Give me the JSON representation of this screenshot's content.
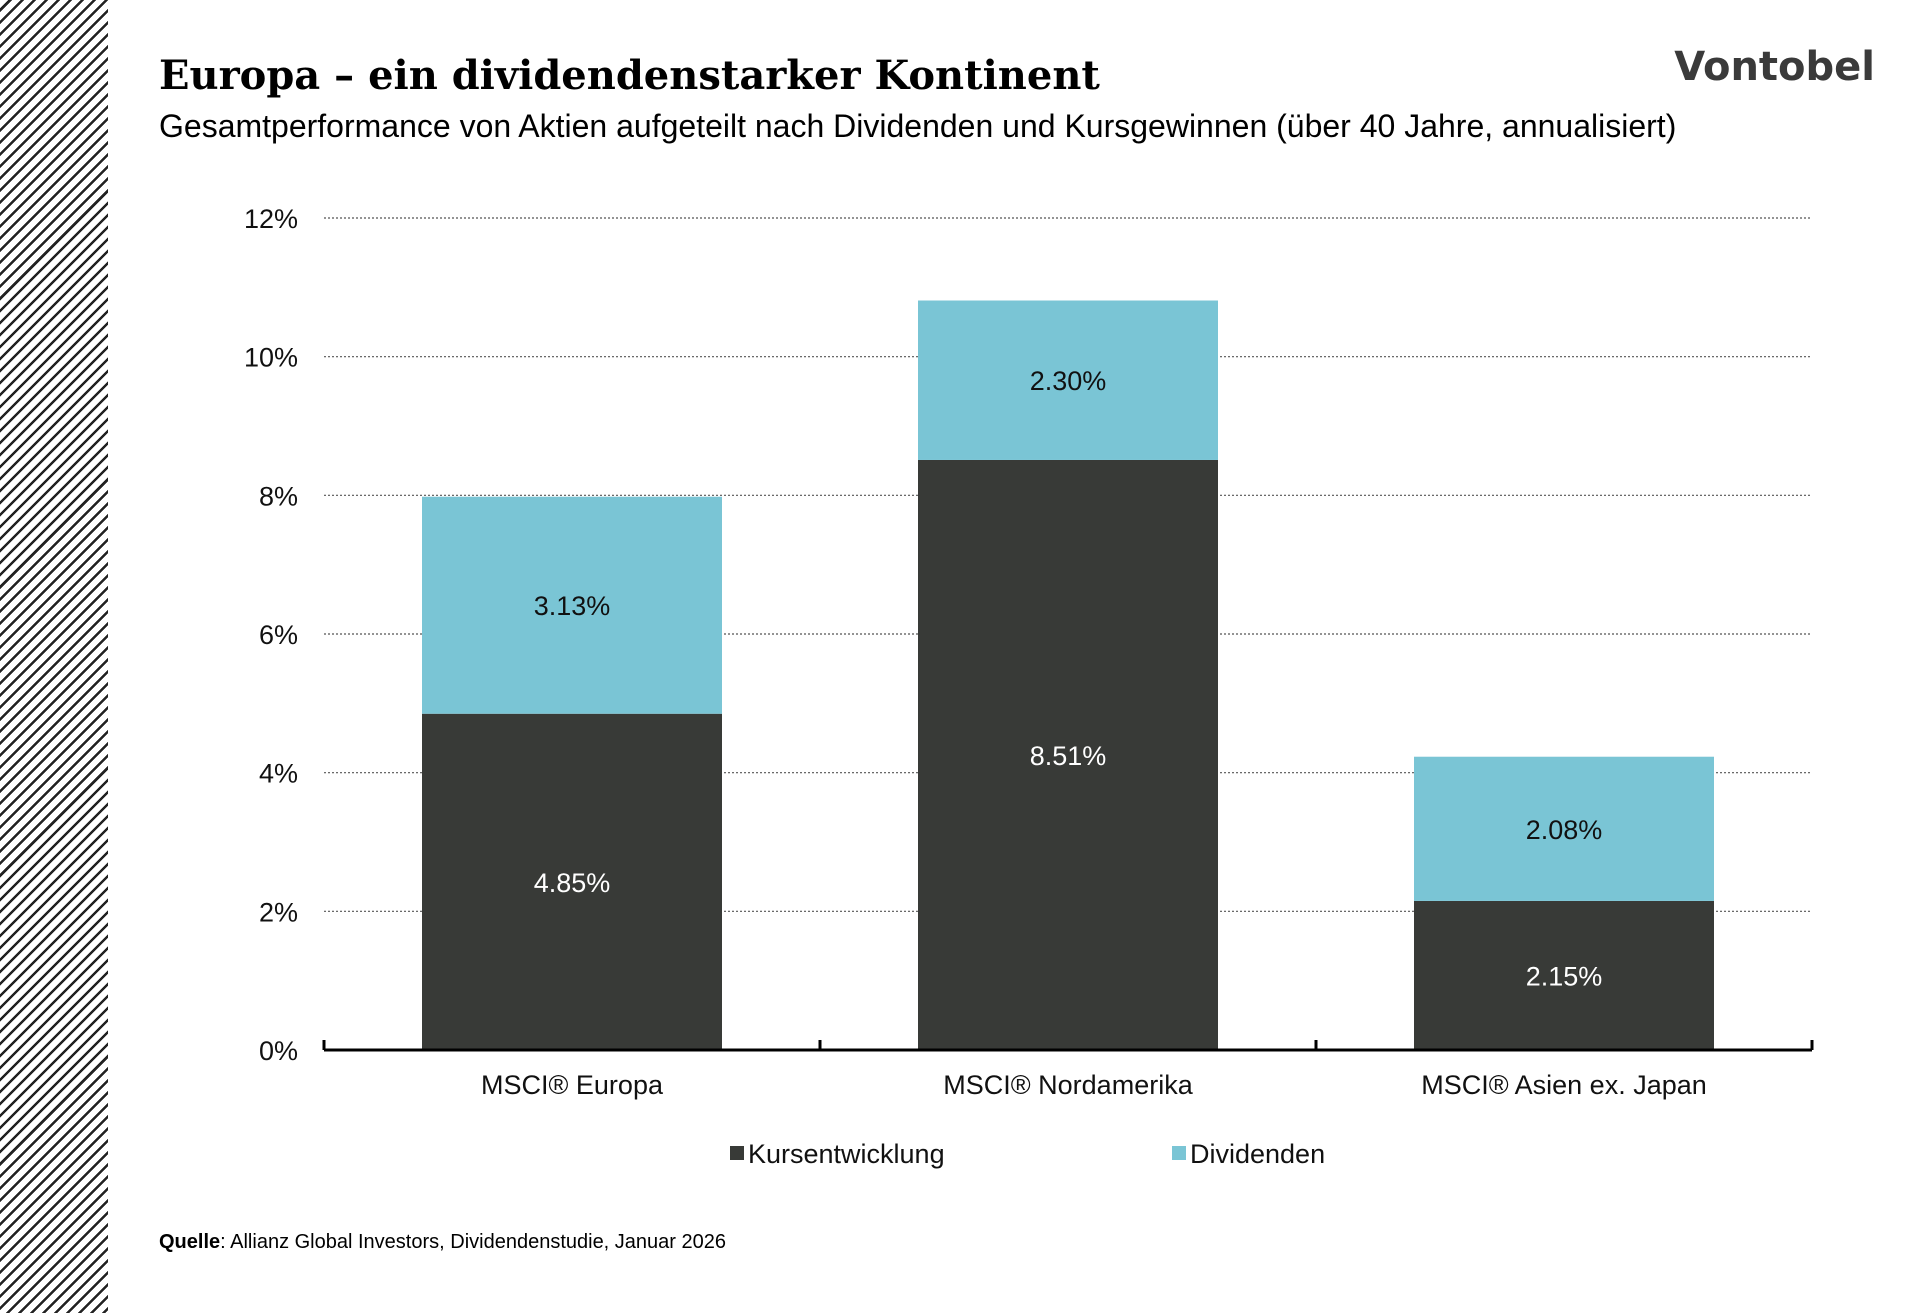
{
  "header": {
    "title": "Europa – ein dividendenstarker Kontinent",
    "subtitle": "Gesamtperformance von Aktien aufgeteilt nach Dividenden und Kursgewinnen (über 40 Jahre, annualisiert)",
    "logo_text": "Vontobel"
  },
  "footer": {
    "source_label": "Quelle",
    "source_text": ": Allianz Global Investors, Dividendenstudie, Januar 2026"
  },
  "chart_data": {
    "type": "bar",
    "stacked": true,
    "categories": [
      "MSCI® Europa",
      "MSCI® Nordamerika",
      "MSCI® Asien ex. Japan"
    ],
    "series": [
      {
        "name": "Kursentwicklung",
        "values": [
          4.85,
          8.51,
          2.15
        ],
        "labels": [
          "4.85%",
          "8.51%",
          "2.15%"
        ],
        "color": "#383a37",
        "label_color": "#ffffff"
      },
      {
        "name": "Dividenden",
        "values": [
          3.13,
          2.3,
          2.08
        ],
        "labels": [
          "3.13%",
          "2.30%",
          "2.08%"
        ],
        "color": "#7ac5d5",
        "label_color": "#111111"
      }
    ],
    "ylim": [
      0,
      12
    ],
    "yticks": [
      0,
      2,
      4,
      6,
      8,
      10,
      12
    ],
    "ytick_labels": [
      "0%",
      "2%",
      "4%",
      "6%",
      "8%",
      "10%",
      "12%"
    ],
    "grid": true,
    "legend_position": "bottom"
  }
}
